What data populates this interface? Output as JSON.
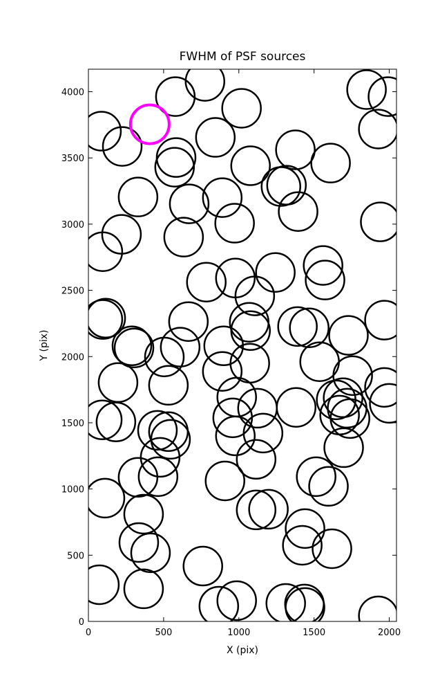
{
  "chart_data": {
    "type": "scatter",
    "title": "FWHM of PSF sources",
    "x_label": "X (pix)",
    "y_label": "Y (pix)",
    "xlim": [
      0,
      2048
    ],
    "ylim": [
      0,
      4170
    ],
    "xticks": [
      0,
      500,
      1000,
      1500,
      2000
    ],
    "yticks": [
      0,
      500,
      1000,
      1500,
      2000,
      2500,
      3000,
      3500,
      4000
    ],
    "series": [
      {
        "color": "#000000",
        "x": [
          87,
          225,
          578,
          775,
          1018,
          844,
          583,
          573,
          1078,
          1376,
          1610,
          1849,
          1991,
          1927,
          330,
          670,
          890,
          972,
          1280,
          1317,
          1394,
          220,
          96,
          633,
          1940,
          784,
          977,
          1106,
          1243,
          1560,
          1573,
          96,
          115,
          665,
          1069,
          1078,
          1390,
          1468,
          1729,
          1968,
          289,
          303,
          610,
          505,
          899,
          890,
          1073,
          1537,
          1757,
          197,
          532,
          986,
          1647,
          1693,
          1720,
          1968,
          2000,
          92,
          183,
          459,
          532,
          546,
          959,
          977,
          1124,
          1161,
          1381,
          1670,
          1739,
          1697,
          477,
          330,
          463,
          1115,
          908,
          1514,
          1596,
          110,
          367,
          1115,
          1197,
          1440,
          1422,
          1619,
          335,
          413,
          761,
          73,
          367,
          867,
          986,
          1312,
          1436,
          1440,
          1927
        ],
        "values": [
          3702,
          3587,
          3963,
          4078,
          3875,
          3655,
          3503,
          3430,
          3441,
          3561,
          3461,
          4016,
          3963,
          3718,
          3205,
          3153,
          3200,
          3007,
          3284,
          3294,
          3095,
          2923,
          2792,
          2902,
          3017,
          2562,
          2593,
          2458,
          2635,
          2688,
          2578,
          2280,
          2290,
          2264,
          2259,
          2196,
          2227,
          2217,
          2160,
          2275,
          2081,
          2065,
          2071,
          1997,
          2081,
          1888,
          1950,
          1961,
          1856,
          1804,
          1783,
          1694,
          1673,
          1689,
          1610,
          1767,
          1647,
          1522,
          1506,
          1443,
          1433,
          1375,
          1537,
          1401,
          1610,
          1422,
          1616,
          1558,
          1532,
          1312,
          1239,
          1088,
          1093,
          1224,
          1061,
          1093,
          1020,
          931,
          810,
          842,
          847,
          701,
          575,
          549,
          596,
          518,
          418,
          277,
          246,
          115,
          157,
          136,
          131,
          105,
          42
        ]
      },
      {
        "color": "#ff00ff",
        "x": [
          408
        ],
        "values": [
          3754
        ]
      }
    ]
  }
}
